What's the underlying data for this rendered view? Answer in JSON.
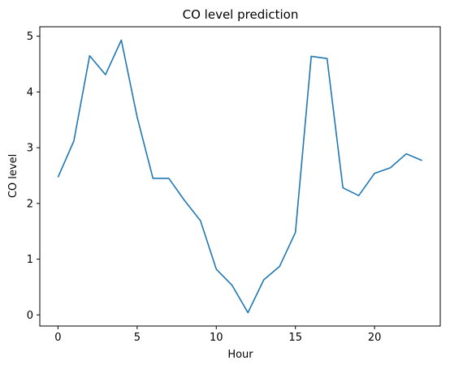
{
  "chart_data": {
    "type": "line",
    "title": "CO level prediction",
    "xlabel": "Hour",
    "ylabel": "CO level",
    "xlim": [
      -1.15,
      24.15
    ],
    "ylim": [
      -0.2,
      5.17
    ],
    "xticks": [
      0,
      5,
      10,
      15,
      20
    ],
    "yticks": [
      0,
      1,
      2,
      3,
      4,
      5
    ],
    "grid": false,
    "series": [
      {
        "color": "#1f77b4",
        "x": [
          0,
          1,
          2,
          3,
          4,
          5,
          6,
          7,
          8,
          9,
          10,
          11,
          12,
          13,
          14,
          15,
          16,
          17,
          18,
          19,
          20,
          21,
          22,
          23
        ],
        "y": [
          2.47,
          3.12,
          4.65,
          4.31,
          4.93,
          3.55,
          2.45,
          2.45,
          2.05,
          1.69,
          0.82,
          0.53,
          0.04,
          0.63,
          0.87,
          1.48,
          4.64,
          4.6,
          2.28,
          2.14,
          2.54,
          2.64,
          2.89,
          2.77
        ]
      }
    ]
  }
}
